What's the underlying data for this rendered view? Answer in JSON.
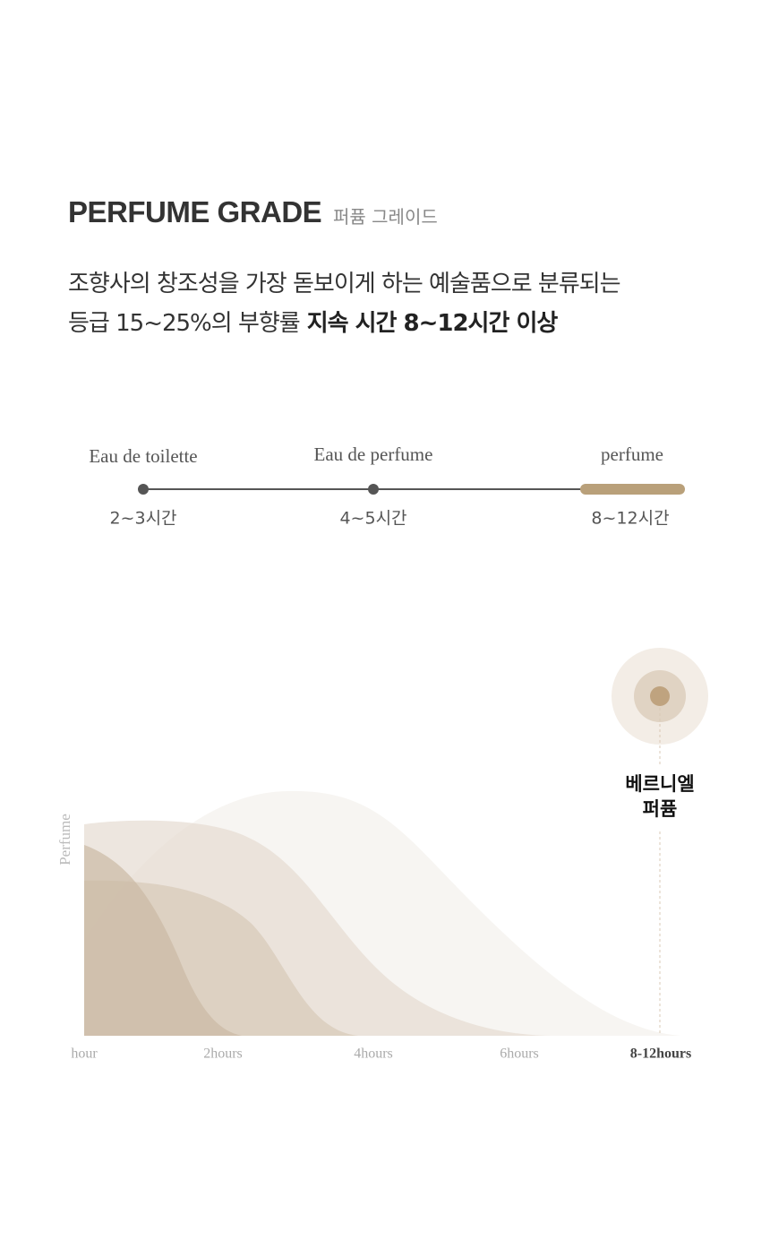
{
  "header": {
    "title": "PERFUME GRADE",
    "subtitle": "퍼퓸 그레이드"
  },
  "description": {
    "line1": "조향사의 창조성을 가장 돋보이게 하는 예술품으로 분류되는",
    "line2": "등급 15~25%의 부향률",
    "line2_bold": "지속 시간 8~12시간 이상"
  },
  "scale": [
    {
      "name": "Eau de toilette",
      "duration": "2~3시간"
    },
    {
      "name": "Eau de perfume",
      "duration": "4~5시간"
    },
    {
      "name": "perfume",
      "duration": "8~12시간"
    }
  ],
  "graph": {
    "y_label": "Perfume",
    "x_labels": [
      "hour",
      "2hours",
      "4hours",
      "6hours",
      "8-12hours"
    ],
    "callout": [
      "베르니엘",
      "퍼퓸"
    ]
  }
}
